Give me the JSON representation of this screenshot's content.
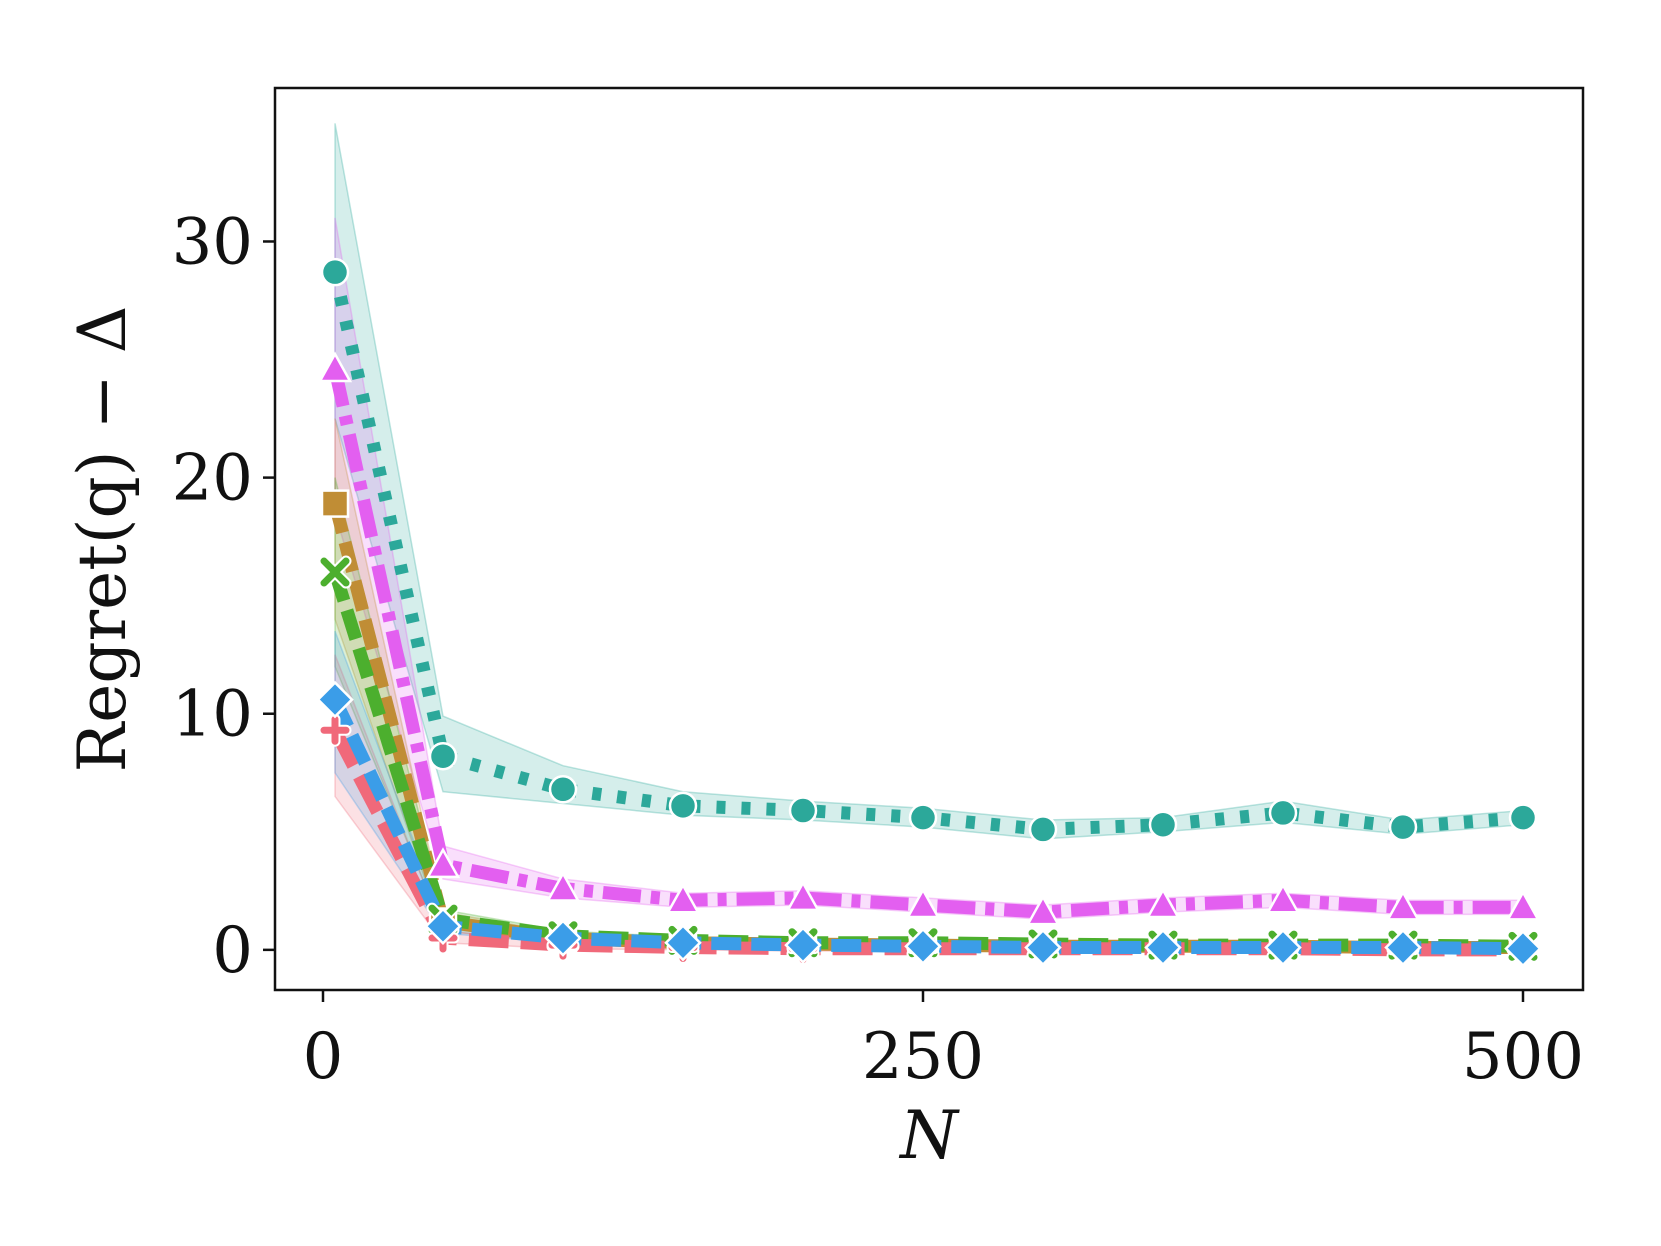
{
  "chart_data": {
    "type": "line",
    "xlabel": "N",
    "ylabel": "Regret(q) − Δ",
    "xlim": [
      -20,
      525
    ],
    "ylim": [
      -1.7,
      36.5
    ],
    "xticks": [
      0,
      250,
      500
    ],
    "yticks": [
      0,
      10,
      20,
      30
    ],
    "x": [
      5,
      50,
      100,
      150,
      200,
      250,
      300,
      350,
      400,
      450,
      500
    ],
    "series": [
      {
        "color": "#2ca89a",
        "marker": "circle",
        "dash": "dotted",
        "values": [
          28.7,
          8.2,
          6.8,
          6.1,
          5.9,
          5.6,
          5.1,
          5.3,
          5.8,
          5.2,
          5.6
        ],
        "lower": [
          22.5,
          6.7,
          6.2,
          5.7,
          5.5,
          5.2,
          4.7,
          5.0,
          5.4,
          4.9,
          5.3
        ],
        "upper": [
          35.0,
          9.9,
          7.8,
          6.7,
          6.3,
          6.0,
          5.5,
          5.6,
          6.3,
          5.5,
          5.9
        ]
      },
      {
        "color": "#e35ff0",
        "marker": "triangle",
        "dash": "dashdot",
        "values": [
          24.6,
          3.6,
          2.6,
          2.1,
          2.2,
          1.9,
          1.6,
          1.9,
          2.1,
          1.8,
          1.8
        ],
        "lower": [
          18.5,
          3.0,
          2.2,
          1.8,
          1.9,
          1.6,
          1.3,
          1.6,
          1.8,
          1.5,
          1.5
        ],
        "upper": [
          31.0,
          4.4,
          3.0,
          2.4,
          2.5,
          2.2,
          1.9,
          2.2,
          2.4,
          2.1,
          2.1
        ]
      },
      {
        "color": "#c08d35",
        "marker": "square",
        "dash": "dashed",
        "values": [
          18.9,
          1.2,
          0.5,
          0.3,
          0.25,
          0.2,
          0.15,
          0.15,
          0.15,
          0.1,
          0.1
        ],
        "lower": [
          14.0,
          0.8,
          0.3,
          0.15,
          0.1,
          0.05,
          0.05,
          0.05,
          0.05,
          0.0,
          0.0
        ],
        "upper": [
          22.5,
          1.6,
          0.7,
          0.45,
          0.4,
          0.35,
          0.3,
          0.3,
          0.3,
          0.25,
          0.25
        ]
      },
      {
        "color": "#4caf2e",
        "marker": "x",
        "dash": "dashed",
        "values": [
          16.0,
          1.3,
          0.6,
          0.4,
          0.3,
          0.3,
          0.25,
          0.2,
          0.2,
          0.2,
          0.15
        ],
        "lower": [
          12.0,
          0.9,
          0.4,
          0.25,
          0.2,
          0.2,
          0.15,
          0.1,
          0.1,
          0.1,
          0.05
        ],
        "upper": [
          20.0,
          1.7,
          0.8,
          0.55,
          0.45,
          0.45,
          0.4,
          0.35,
          0.35,
          0.35,
          0.3
        ]
      },
      {
        "color": "#f0697a",
        "marker": "plus",
        "dash": "longdash",
        "values": [
          9.3,
          0.5,
          0.2,
          0.1,
          0.05,
          0.05,
          0.05,
          0.05,
          0.05,
          0.0,
          0.0
        ],
        "lower": [
          6.5,
          0.3,
          0.05,
          0.0,
          -0.05,
          -0.05,
          -0.05,
          -0.05,
          -0.05,
          -0.1,
          -0.1
        ],
        "upper": [
          12.5,
          0.8,
          0.35,
          0.25,
          0.2,
          0.2,
          0.2,
          0.2,
          0.2,
          0.15,
          0.15
        ]
      },
      {
        "color": "#3b9de8",
        "marker": "diamond",
        "dash": "dashed",
        "values": [
          10.6,
          1.0,
          0.5,
          0.3,
          0.2,
          0.15,
          0.1,
          0.1,
          0.1,
          0.1,
          0.05
        ],
        "lower": [
          7.5,
          0.7,
          0.3,
          0.15,
          0.1,
          0.05,
          0.0,
          0.0,
          0.0,
          0.0,
          -0.05
        ],
        "upper": [
          13.5,
          1.3,
          0.7,
          0.45,
          0.35,
          0.3,
          0.25,
          0.25,
          0.25,
          0.25,
          0.2
        ]
      }
    ]
  }
}
